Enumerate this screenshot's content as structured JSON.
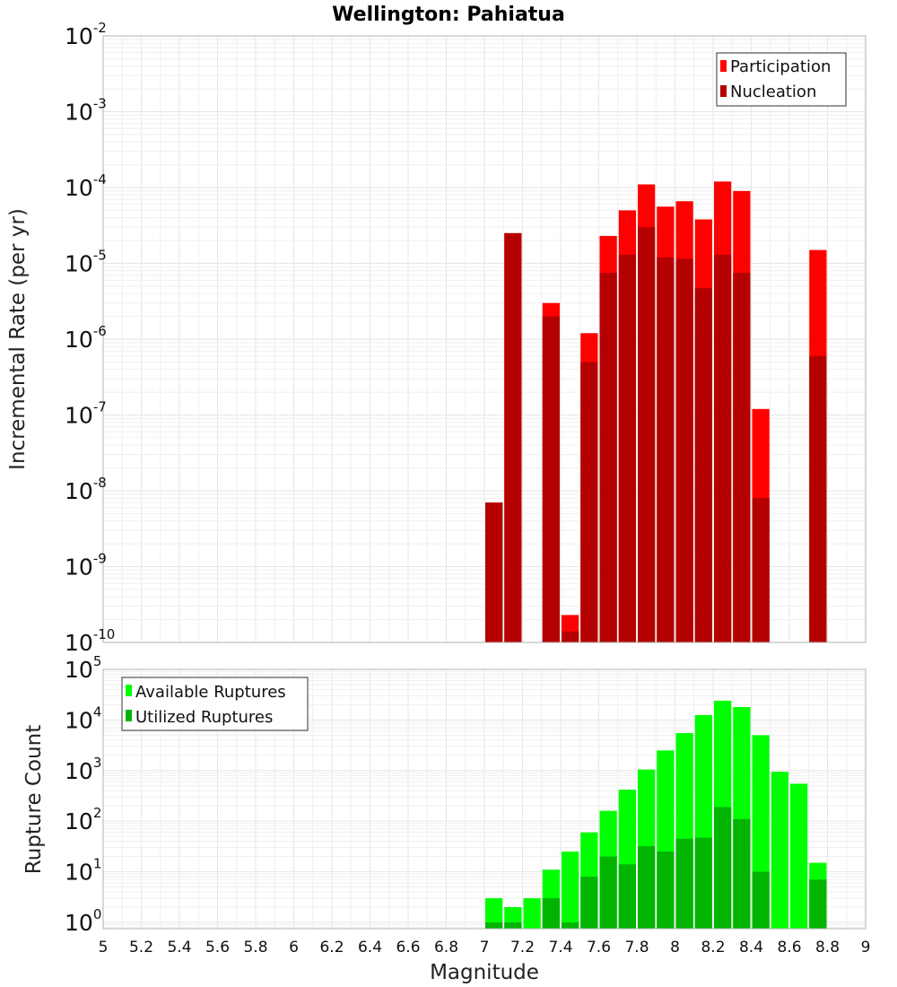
{
  "chart_data": [
    {
      "type": "bar",
      "title": "Wellington: Pahiatua",
      "xlabel": "",
      "ylabel": "Incremental Rate (per yr)",
      "yscale": "log",
      "ylim": [
        1e-10,
        0.01
      ],
      "xlim": [
        5,
        9
      ],
      "bin_width": 0.1,
      "legend_position": "top-right",
      "grid": true,
      "series": [
        {
          "name": "Participation",
          "color": "#ff0000",
          "x": [
            7.05,
            7.15,
            7.35,
            7.45,
            7.55,
            7.65,
            7.75,
            7.85,
            7.95,
            8.05,
            8.15,
            8.25,
            8.35,
            8.45,
            8.75
          ],
          "values": [
            7e-09,
            2.5e-05,
            3e-06,
            2.3e-10,
            1.2e-06,
            2.3e-05,
            5e-05,
            0.00011,
            5.6e-05,
            6.6e-05,
            3.8e-05,
            0.00012,
            9e-05,
            1.2e-07,
            1.5e-05
          ]
        },
        {
          "name": "Nucleation",
          "color": "#b40000",
          "x": [
            7.05,
            7.15,
            7.35,
            7.45,
            7.55,
            7.65,
            7.75,
            7.85,
            7.95,
            8.05,
            8.15,
            8.25,
            8.35,
            8.45,
            8.75
          ],
          "values": [
            7e-09,
            2.5e-05,
            2e-06,
            1.4e-10,
            5e-07,
            7.5e-06,
            1.3e-05,
            3e-05,
            1.2e-05,
            1.15e-05,
            4.7e-06,
            1.3e-05,
            7.5e-06,
            8e-09,
            6e-07
          ]
        }
      ]
    },
    {
      "type": "bar",
      "title": "",
      "xlabel": "Magnitude",
      "ylabel": "Rupture Count",
      "yscale": "log",
      "ylim": [
        0.75,
        100000.0
      ],
      "xlim": [
        5,
        9
      ],
      "bin_width": 0.1,
      "legend_position": "top-left",
      "grid": true,
      "x_ticks": [
        "5",
        "5.2",
        "5.4",
        "5.6",
        "5.8",
        "6",
        "6.2",
        "6.4",
        "6.6",
        "6.8",
        "7",
        "7.2",
        "7.4",
        "7.6",
        "7.8",
        "8",
        "8.2",
        "8.4",
        "8.6",
        "8.8",
        "9"
      ],
      "series": [
        {
          "name": "Available Ruptures",
          "color": "#00ff00",
          "x": [
            7.05,
            7.15,
            7.25,
            7.35,
            7.45,
            7.55,
            7.65,
            7.75,
            7.85,
            7.95,
            8.05,
            8.15,
            8.25,
            8.35,
            8.45,
            8.55,
            8.65,
            8.75
          ],
          "values": [
            3,
            2,
            3,
            11,
            25,
            60,
            160,
            420,
            1050,
            2500,
            5500,
            12500,
            24000,
            18000,
            5000,
            950,
            550,
            15
          ]
        },
        {
          "name": "Utilized Ruptures",
          "color": "#00b400",
          "x": [
            7.05,
            7.15,
            7.35,
            7.45,
            7.55,
            7.65,
            7.75,
            7.85,
            7.95,
            8.05,
            8.15,
            8.25,
            8.35,
            8.45,
            8.75
          ],
          "values": [
            1,
            1,
            3,
            1,
            8,
            20,
            14,
            32,
            25,
            45,
            47,
            190,
            110,
            10,
            7
          ]
        }
      ]
    }
  ]
}
